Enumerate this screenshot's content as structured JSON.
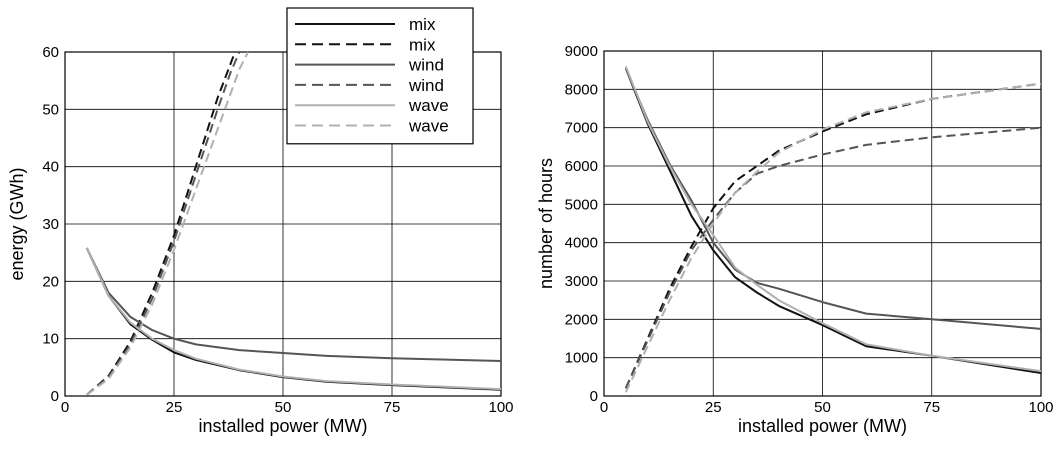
{
  "chart_data": [
    {
      "type": "line",
      "title": "",
      "xlabel": "installed power (MW)",
      "ylabel": "energy (GWh)",
      "xlim": [
        0,
        100
      ],
      "ylim": [
        0,
        60
      ],
      "xticks": [
        0,
        25,
        50,
        75,
        100
      ],
      "yticks": [
        0,
        10,
        20,
        30,
        40,
        50,
        60
      ],
      "grid": true,
      "legend": {
        "placement": "top-right",
        "entries": [
          {
            "label": "mix",
            "color": "#111111",
            "dash": "solid"
          },
          {
            "label": "mix",
            "color": "#111111",
            "dash": "dashed"
          },
          {
            "label": "wind",
            "color": "#555555",
            "dash": "solid"
          },
          {
            "label": "wind",
            "color": "#555555",
            "dash": "dashed"
          },
          {
            "label": "wave",
            "color": "#b0b0b0",
            "dash": "solid"
          },
          {
            "label": "wave",
            "color": "#b0b0b0",
            "dash": "dashed"
          }
        ]
      },
      "series": [
        {
          "name": "mix",
          "color": "#111111",
          "dash": "solid",
          "points": [
            [
              5,
              25.8
            ],
            [
              10,
              17.5
            ],
            [
              15,
              12.5
            ],
            [
              20,
              9.8
            ],
            [
              25,
              7.6
            ],
            [
              30,
              6.3
            ],
            [
              40,
              4.5
            ],
            [
              50,
              3.3
            ],
            [
              60,
              2.5
            ],
            [
              75,
              1.9
            ],
            [
              100,
              1.1
            ]
          ]
        },
        {
          "name": "mix",
          "color": "#111111",
          "dash": "dashed",
          "points": [
            [
              5,
              0.2
            ],
            [
              10,
              3.5
            ],
            [
              15,
              9.5
            ],
            [
              20,
              18
            ],
            [
              25,
              28
            ],
            [
              30,
              40
            ],
            [
              35,
              52
            ],
            [
              37.5,
              57
            ],
            [
              39,
              60
            ]
          ]
        },
        {
          "name": "wind",
          "color": "#555555",
          "dash": "solid",
          "points": [
            [
              5,
              25.8
            ],
            [
              10,
              18
            ],
            [
              15,
              13.8
            ],
            [
              20,
              11.5
            ],
            [
              25,
              10
            ],
            [
              30,
              9
            ],
            [
              40,
              8
            ],
            [
              50,
              7.5
            ],
            [
              60,
              7
            ],
            [
              75,
              6.6
            ],
            [
              100,
              6.1
            ]
          ]
        },
        {
          "name": "wind",
          "color": "#555555",
          "dash": "dashed",
          "points": [
            [
              5,
              0.2
            ],
            [
              10,
              3.3
            ],
            [
              15,
              9
            ],
            [
              20,
              17
            ],
            [
              25,
              27
            ],
            [
              30,
              38.5
            ],
            [
              35,
              50
            ],
            [
              38,
              56.5
            ],
            [
              40,
              60
            ]
          ]
        },
        {
          "name": "wave",
          "color": "#b0b0b0",
          "dash": "solid",
          "points": [
            [
              5,
              25.8
            ],
            [
              10,
              17.5
            ],
            [
              15,
              12.8
            ],
            [
              20,
              10
            ],
            [
              25,
              8
            ],
            [
              30,
              6.5
            ],
            [
              40,
              4.6
            ],
            [
              50,
              3.4
            ],
            [
              60,
              2.6
            ],
            [
              75,
              2
            ],
            [
              100,
              1.2
            ]
          ]
        },
        {
          "name": "wave",
          "color": "#b0b0b0",
          "dash": "dashed",
          "points": [
            [
              5,
              0.2
            ],
            [
              10,
              3
            ],
            [
              15,
              8.5
            ],
            [
              20,
              16
            ],
            [
              25,
              25.5
            ],
            [
              30,
              36
            ],
            [
              35,
              46.5
            ],
            [
              40,
              57
            ],
            [
              42,
              60
            ]
          ]
        }
      ]
    },
    {
      "type": "line",
      "title": "",
      "xlabel": "installed power (MW)",
      "ylabel": "number of hours",
      "xlim": [
        0,
        100
      ],
      "ylim": [
        0,
        9000
      ],
      "xticks": [
        0,
        25,
        50,
        75,
        100
      ],
      "yticks": [
        0,
        1000,
        2000,
        3000,
        4000,
        5000,
        6000,
        7000,
        8000,
        9000
      ],
      "grid": true,
      "series": [
        {
          "name": "mix",
          "color": "#111111",
          "dash": "solid",
          "points": [
            [
              5,
              8550
            ],
            [
              10,
              7100
            ],
            [
              15,
              5900
            ],
            [
              20,
              4700
            ],
            [
              25,
              3800
            ],
            [
              30,
              3100
            ],
            [
              35,
              2700
            ],
            [
              40,
              2350
            ],
            [
              50,
              1850
            ],
            [
              60,
              1300
            ],
            [
              75,
              1050
            ],
            [
              100,
              600
            ]
          ]
        },
        {
          "name": "mix",
          "color": "#111111",
          "dash": "dashed",
          "points": [
            [
              5,
              200
            ],
            [
              10,
              1500
            ],
            [
              15,
              2800
            ],
            [
              20,
              3900
            ],
            [
              25,
              4900
            ],
            [
              30,
              5600
            ],
            [
              35,
              6000
            ],
            [
              40,
              6400
            ],
            [
              50,
              6900
            ],
            [
              60,
              7350
            ],
            [
              75,
              7750
            ],
            [
              100,
              8150
            ]
          ]
        },
        {
          "name": "wind",
          "color": "#555555",
          "dash": "solid",
          "points": [
            [
              5,
              8550
            ],
            [
              10,
              7200
            ],
            [
              15,
              6050
            ],
            [
              20,
              5100
            ],
            [
              25,
              4000
            ],
            [
              30,
              3300
            ],
            [
              35,
              2950
            ],
            [
              40,
              2800
            ],
            [
              50,
              2450
            ],
            [
              60,
              2150
            ],
            [
              75,
              2000
            ],
            [
              100,
              1750
            ]
          ]
        },
        {
          "name": "wind",
          "color": "#555555",
          "dash": "dashed",
          "points": [
            [
              5,
              200
            ],
            [
              10,
              1450
            ],
            [
              15,
              2700
            ],
            [
              20,
              3800
            ],
            [
              25,
              4600
            ],
            [
              30,
              5300
            ],
            [
              35,
              5800
            ],
            [
              40,
              6000
            ],
            [
              50,
              6300
            ],
            [
              60,
              6550
            ],
            [
              75,
              6750
            ],
            [
              100,
              7000
            ]
          ]
        },
        {
          "name": "wave",
          "color": "#b0b0b0",
          "dash": "solid",
          "points": [
            [
              5,
              8600
            ],
            [
              10,
              7150
            ],
            [
              15,
              6000
            ],
            [
              20,
              5000
            ],
            [
              25,
              4200
            ],
            [
              30,
              3350
            ],
            [
              35,
              2900
            ],
            [
              40,
              2500
            ],
            [
              50,
              1900
            ],
            [
              60,
              1350
            ],
            [
              75,
              1050
            ],
            [
              100,
              650
            ]
          ]
        },
        {
          "name": "wave",
          "color": "#b0b0b0",
          "dash": "dashed",
          "points": [
            [
              5,
              100
            ],
            [
              10,
              1300
            ],
            [
              15,
              2500
            ],
            [
              20,
              3600
            ],
            [
              25,
              4500
            ],
            [
              30,
              5300
            ],
            [
              35,
              5850
            ],
            [
              40,
              6350
            ],
            [
              50,
              6950
            ],
            [
              60,
              7400
            ],
            [
              75,
              7750
            ],
            [
              100,
              8150
            ]
          ]
        }
      ]
    }
  ]
}
